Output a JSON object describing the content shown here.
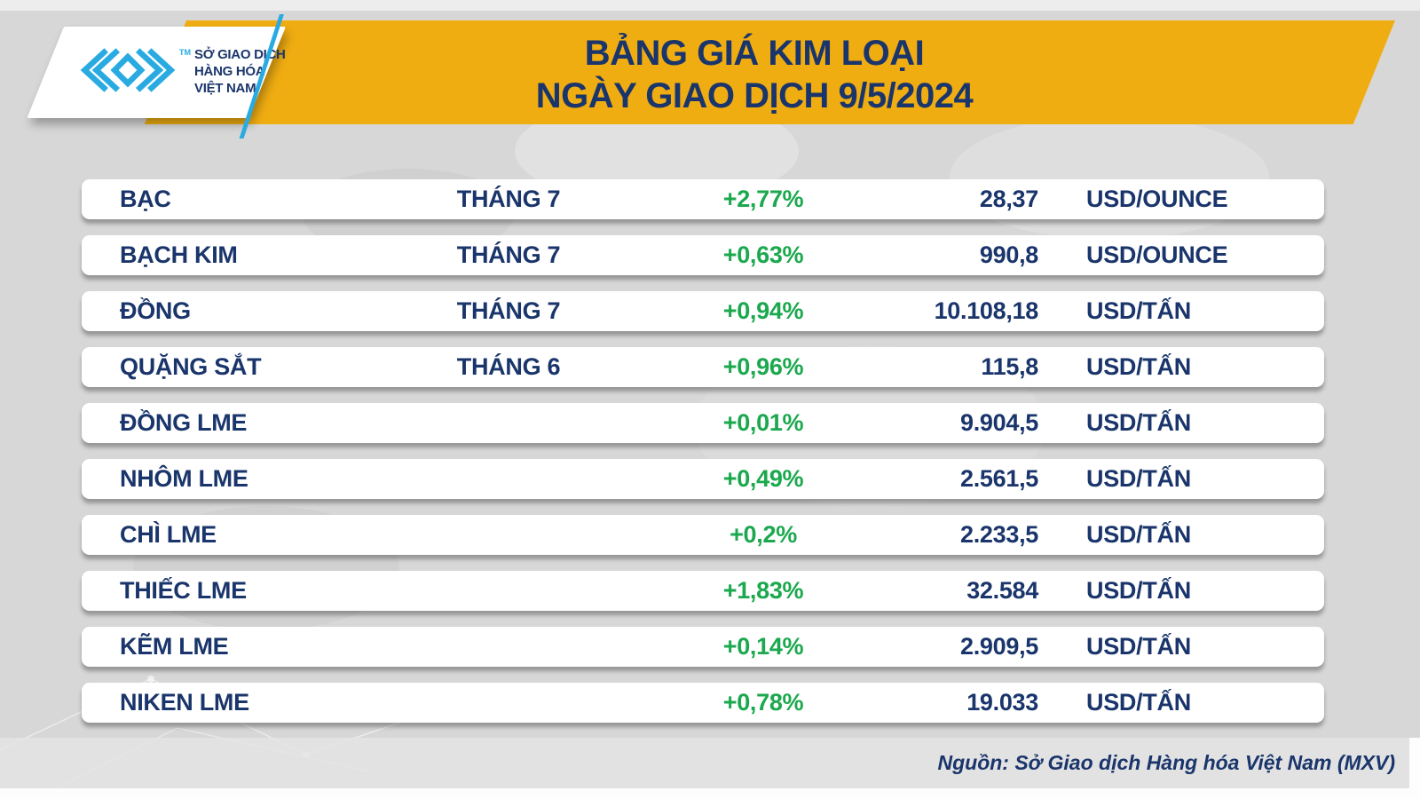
{
  "colors": {
    "background": "#d7d7d7",
    "banner_yellow": "#f0ad12",
    "text_navy": "#1a356b",
    "change_green": "#1ba84e",
    "logo_cyan": "#29abe2",
    "row_white": "#ffffff"
  },
  "header": {
    "title_line1": "BẢNG GIÁ KIM LOẠI",
    "title_line2": "NGÀY GIAO DỊCH 9/5/2024",
    "logo_tm": "TM",
    "logo_text_line1": "SỞ GIAO DỊCH",
    "logo_text_line2": "HÀNG HÓA",
    "logo_text_line3": "VIỆT NAM"
  },
  "table": {
    "rows": [
      {
        "name": "BẠC",
        "month": "THÁNG 7",
        "change": "+2,77%",
        "price": "28,37",
        "unit": "USD/OUNCE"
      },
      {
        "name": "BẠCH KIM",
        "month": "THÁNG 7",
        "change": "+0,63%",
        "price": "990,8",
        "unit": "USD/OUNCE"
      },
      {
        "name": "ĐỒNG",
        "month": "THÁNG 7",
        "change": "+0,94%",
        "price": "10.108,18",
        "unit": "USD/TẤN"
      },
      {
        "name": "QUẶNG SẮT",
        "month": "THÁNG 6",
        "change": "+0,96%",
        "price": "115,8",
        "unit": "USD/TẤN"
      },
      {
        "name": "ĐỒNG LME",
        "month": "",
        "change": "+0,01%",
        "price": "9.904,5",
        "unit": "USD/TẤN"
      },
      {
        "name": "NHÔM LME",
        "month": "",
        "change": "+0,49%",
        "price": "2.561,5",
        "unit": "USD/TẤN"
      },
      {
        "name": "CHÌ LME",
        "month": "",
        "change": "+0,2%",
        "price": "2.233,5",
        "unit": "USD/TẤN"
      },
      {
        "name": "THIẾC LME",
        "month": "",
        "change": "+1,83%",
        "price": "32.584",
        "unit": "USD/TẤN"
      },
      {
        "name": "KẼM LME",
        "month": "",
        "change": "+0,14%",
        "price": "2.909,5",
        "unit": "USD/TẤN"
      },
      {
        "name": "NIKEN LME",
        "month": "",
        "change": "+0,78%",
        "price": "19.033",
        "unit": "USD/TẤN"
      }
    ]
  },
  "footer": {
    "source": "Nguồn: Sở Giao dịch Hàng hóa Việt Nam (MXV)"
  },
  "chart_data": {
    "type": "table",
    "title": "BẢNG GIÁ KIM LOẠI",
    "subtitle": "NGÀY GIAO DỊCH 9/5/2024",
    "categories": [
      "BẠC",
      "BẠCH KIM",
      "ĐỒNG",
      "QUẶNG SẮT",
      "ĐỒNG LME",
      "NHÔM LME",
      "CHÌ LME",
      "THIẾC LME",
      "KẼM LME",
      "NIKEN LME"
    ],
    "series": [
      {
        "name": "month",
        "values": [
          "THÁNG 7",
          "THÁNG 7",
          "THÁNG 7",
          "THÁNG 6",
          "",
          "",
          "",
          "",
          "",
          ""
        ]
      },
      {
        "name": "change_percent",
        "values": [
          2.77,
          0.63,
          0.94,
          0.96,
          0.01,
          0.49,
          0.2,
          1.83,
          0.14,
          0.78
        ]
      },
      {
        "name": "price",
        "values": [
          28.37,
          990.8,
          10108.18,
          115.8,
          9904.5,
          2561.5,
          2233.5,
          32584,
          2909.5,
          19033
        ]
      },
      {
        "name": "unit",
        "values": [
          "USD/OUNCE",
          "USD/OUNCE",
          "USD/TẤN",
          "USD/TẤN",
          "USD/TẤN",
          "USD/TẤN",
          "USD/TẤN",
          "USD/TẤN",
          "USD/TẤN",
          "USD/TẤN"
        ]
      }
    ],
    "layout_hints": {
      "change_color": "#1ba84e",
      "all_changes_positive": true
    }
  }
}
